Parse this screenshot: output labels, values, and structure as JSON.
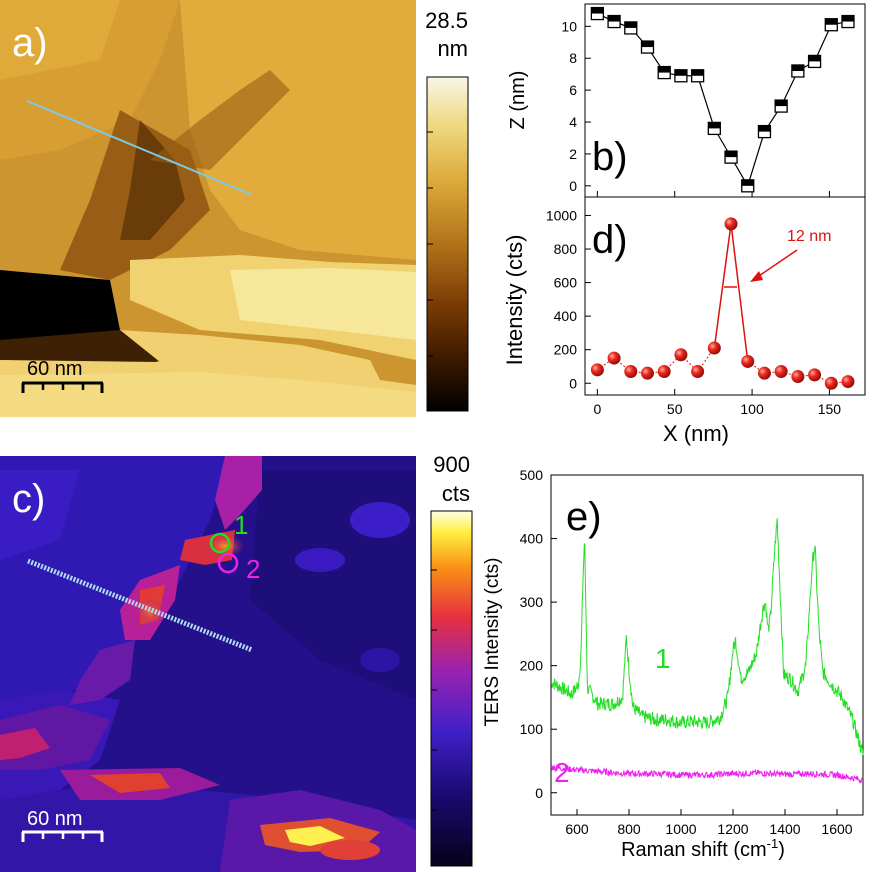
{
  "panels": {
    "a": {
      "label": "a)",
      "colorbar_max": "28.5",
      "colorbar_unit": "nm",
      "scalebar": "60 nm",
      "colors": [
        "#000000",
        "#3a1800",
        "#7a3c05",
        "#b2731a",
        "#d9a838",
        "#efd77d",
        "#f5f0cf",
        "#ffffff"
      ]
    },
    "c": {
      "label": "c)",
      "colorbar_max": "900",
      "colorbar_unit": "cts",
      "scalebar": "60 nm",
      "marker1": "1",
      "marker2": "2",
      "colors": [
        "#000000",
        "#17044f",
        "#3d13c8",
        "#8a1fb5",
        "#e0303a",
        "#f98c12",
        "#fff03a",
        "#ffffff"
      ]
    },
    "b": {
      "label": "b)"
    },
    "d": {
      "label": "d)",
      "annotation": "12 nm"
    },
    "e": {
      "label": "e)",
      "curve1_label": "1",
      "curve2_label": "2"
    }
  },
  "chart_data": [
    {
      "type": "line",
      "panel": "b",
      "ylabel": "Z (nm)",
      "ylim": [
        -0.7,
        11.4
      ],
      "yticks": [
        0,
        2,
        4,
        6,
        8,
        10
      ],
      "xlim": [
        -8,
        173
      ],
      "x": [
        0,
        10.8,
        21.6,
        32.4,
        43.2,
        54,
        64.8,
        75.6,
        86.4,
        97.2,
        108,
        118.8,
        129.6,
        140.4,
        151.2,
        162
      ],
      "series": [
        {
          "values": [
            10.8,
            10.3,
            9.9,
            8.7,
            7.1,
            6.9,
            6.9,
            3.6,
            1.8,
            0.0,
            3.4,
            5.0,
            7.2,
            7.8,
            10.1,
            10.3
          ]
        }
      ]
    },
    {
      "type": "line",
      "panel": "d",
      "xlabel": "X (nm)",
      "ylabel": "Intensity (cts)",
      "ylim": [
        -70,
        1110
      ],
      "yticks": [
        0,
        200,
        400,
        600,
        800,
        1000
      ],
      "xlim": [
        -8,
        173
      ],
      "xticks": [
        0,
        50,
        100,
        150
      ],
      "x": [
        0,
        10.8,
        21.6,
        32.4,
        43.2,
        54,
        64.8,
        75.6,
        86.4,
        97.2,
        108,
        118.8,
        129.6,
        140.4,
        151.2,
        162
      ],
      "series": [
        {
          "values": [
            80,
            150,
            70,
            60,
            70,
            170,
            70,
            210,
            950,
            130,
            60,
            70,
            40,
            50,
            0,
            10
          ]
        }
      ]
    },
    {
      "type": "line",
      "panel": "e",
      "xlabel": "Raman shift (cm-1)",
      "ylabel": "TERS Intensity (cts)",
      "xlim": [
        500,
        1700
      ],
      "ylim": [
        -35,
        500
      ],
      "xticks": [
        600,
        800,
        1000,
        1200,
        1400,
        1600
      ],
      "yticks": [
        0,
        100,
        200,
        300,
        400,
        500
      ],
      "series": [
        {
          "name": "1",
          "color": "#22dd22",
          "x": [
            500,
            540,
            580,
            605,
            615,
            622,
            629,
            640,
            680,
            740,
            775,
            790,
            800,
            815,
            850,
            900,
            950,
            1000,
            1050,
            1100,
            1150,
            1180,
            1200,
            1210,
            1230,
            1260,
            1290,
            1315,
            1325,
            1335,
            1345,
            1360,
            1370,
            1380,
            1395,
            1420,
            1450,
            1480,
            1505,
            1515,
            1530,
            1545,
            1580,
            1620,
            1660,
            1700
          ],
          "values": [
            175,
            165,
            155,
            170,
            215,
            320,
            405,
            165,
            140,
            140,
            150,
            245,
            195,
            135,
            120,
            115,
            115,
            110,
            112,
            110,
            118,
            150,
            225,
            240,
            180,
            190,
            220,
            290,
            300,
            255,
            280,
            380,
            430,
            330,
            185,
            180,
            160,
            200,
            360,
            390,
            260,
            190,
            170,
            150,
            115,
            60
          ]
        },
        {
          "name": "2",
          "color": "#ee22ee",
          "x": [
            500,
            600,
            700,
            800,
            900,
            1000,
            1100,
            1200,
            1300,
            1400,
            1500,
            1600,
            1700
          ],
          "values": [
            40,
            36,
            33,
            30,
            30,
            28,
            28,
            30,
            31,
            29,
            30,
            28,
            20
          ]
        }
      ]
    }
  ]
}
